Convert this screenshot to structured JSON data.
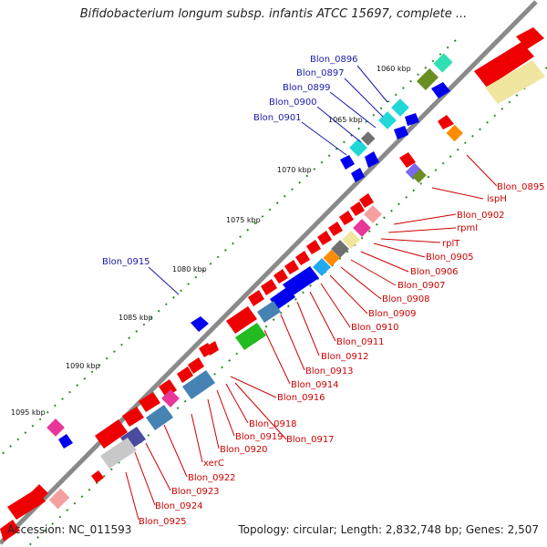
{
  "title": "Bifidobacterium longum subsp. infantis ATCC 15697, complete ...",
  "accession": "Accession: NC_011593",
  "topology": "Topology: circular; Length: 2,832,748 bp; Genes: 2,507",
  "colors": {
    "backbone": "#8a8a8a",
    "tick": "#2e8b2e",
    "outer_label": "#1a1aaa",
    "inner_label": "#cc0000"
  },
  "kbp_ticks": [
    "1060 kbp",
    "1065 kbp",
    "1070 kbp",
    "1075 kbp",
    "1080 kbp",
    "1085 kbp",
    "1090 kbp",
    "1095 kbp"
  ],
  "outer_genes": [
    "Blon_0896",
    "Blon_0897",
    "Blon_0899",
    "Blon_0900",
    "Blon_0901",
    "Blon_0915"
  ],
  "inner_genes": [
    "Blon_0895",
    "ispH",
    "Blon_0902",
    "rpmI",
    "rplT",
    "Blon_0905",
    "Blon_0906",
    "Blon_0907",
    "Blon_0908",
    "Blon_0909",
    "Blon_0910",
    "Blon_0911",
    "Blon_0912",
    "Blon_0913",
    "Blon_0914",
    "Blon_0916",
    "Blon_0918",
    "Blon_0919",
    "Blon_0917",
    "Blon_0920",
    "xerC",
    "Blon_0922",
    "Blon_0923",
    "Blon_0924",
    "Blon_0925"
  ]
}
